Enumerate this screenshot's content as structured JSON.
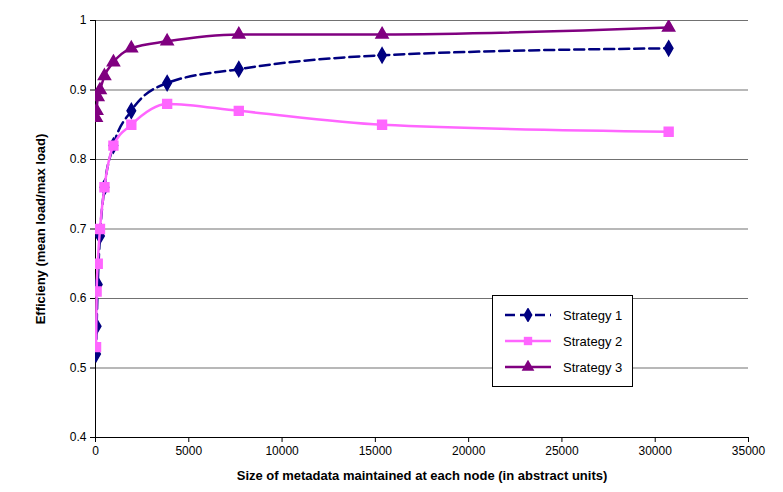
{
  "chart_data": {
    "type": "line",
    "x_label": "Size of metadata maintained at each node (in abstract units)",
    "y_label": "Efficieny (mean load/max load)",
    "x": [
      30,
      60,
      120,
      240,
      480,
      960,
      1920,
      3840,
      7680,
      15360,
      30720
    ],
    "series": [
      {
        "name": "Strategy 1",
        "color": "#000080",
        "marker": "diamond",
        "line_style": "dashed",
        "values": [
          0.52,
          0.56,
          0.62,
          0.69,
          0.76,
          0.82,
          0.87,
          0.91,
          0.93,
          0.95,
          0.96
        ]
      },
      {
        "name": "Strategy 2",
        "color": "#ff66ff",
        "marker": "square",
        "line_style": "solid",
        "values": [
          0.53,
          0.61,
          0.65,
          0.7,
          0.76,
          0.82,
          0.85,
          0.88,
          0.87,
          0.85,
          0.84
        ]
      },
      {
        "name": "Strategy 3",
        "color": "#800080",
        "marker": "triangle",
        "line_style": "solid",
        "values": [
          0.86,
          0.87,
          0.89,
          0.9,
          0.92,
          0.94,
          0.96,
          0.97,
          0.98,
          0.98,
          0.99
        ]
      }
    ],
    "xlim": [
      0,
      35000
    ],
    "xticks": [
      0,
      5000,
      10000,
      15000,
      20000,
      25000,
      30000,
      35000
    ],
    "ylim": [
      0.4,
      1
    ],
    "yticks": [
      0.4,
      0.5,
      0.6,
      0.7,
      0.8,
      0.9,
      1
    ],
    "grid": true,
    "legend": "bottom-right"
  }
}
